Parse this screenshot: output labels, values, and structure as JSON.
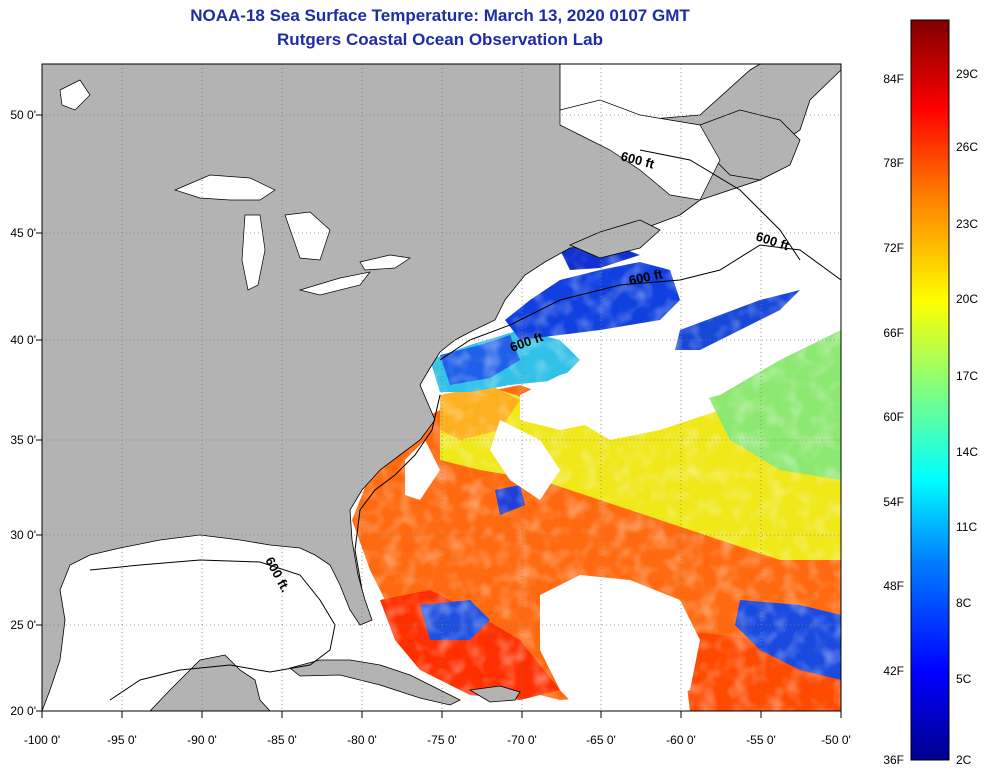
{
  "title": "NOAA-18 Sea Surface Temperature:  March 13, 2020 0107 GMT",
  "subtitle": "Rutgers Coastal Ocean Observation Lab",
  "map": {
    "lon_ticks": [
      "-100 0'",
      "-95 0'",
      "-90 0'",
      "-85 0'",
      "-80 0'",
      "-75 0'",
      "-70 0'",
      "-65 0'",
      "-60 0'",
      "-55 0'",
      "-50 0'"
    ],
    "lat_ticks": [
      "20 0'",
      "25 0'",
      "30 0'",
      "35 0'",
      "40 0'",
      "45 0'",
      "50 0'"
    ],
    "isobath_labels": [
      "600 ft",
      "600 ft",
      "600 ft",
      "600 ft",
      "600 ft."
    ],
    "colors": {
      "land": "#b3b3b3",
      "cloud_or_no_data": "#ffffff",
      "outline": "#000000"
    }
  },
  "colorbar": {
    "fahrenheit_labels": [
      "84F",
      "78F",
      "72F",
      "66F",
      "60F",
      "54F",
      "48F",
      "42F",
      "36F"
    ],
    "celsius_labels": [
      "29C",
      "26C",
      "23C",
      "20C",
      "17C",
      "14C",
      "11C",
      "8C",
      "5C",
      "2C"
    ],
    "colors": [
      "#7f0000",
      "#ff0000",
      "#ff8000",
      "#ffff00",
      "#80ff80",
      "#00ffff",
      "#0080ff",
      "#0000ff",
      "#00008f"
    ]
  }
}
